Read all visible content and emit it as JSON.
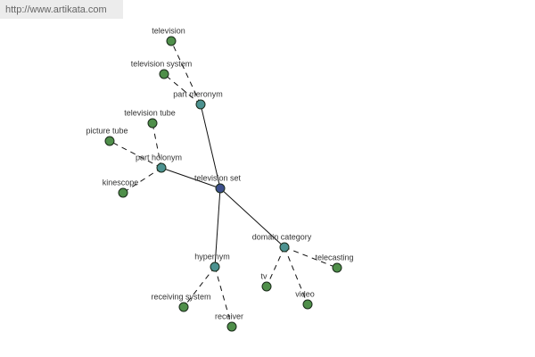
{
  "header": {
    "url": "http://www.artikata.com"
  },
  "nodes": [
    {
      "label": "television set"
    },
    {
      "label": "part meronym"
    },
    {
      "label": "television"
    },
    {
      "label": "television system"
    },
    {
      "label": "part holonym"
    },
    {
      "label": "television tube"
    },
    {
      "label": "picture tube"
    },
    {
      "label": "kinescope"
    },
    {
      "label": "domain category"
    },
    {
      "label": "telecasting"
    },
    {
      "label": "tv"
    },
    {
      "label": "video"
    },
    {
      "label": "hypernym"
    },
    {
      "label": "receiving system"
    },
    {
      "label": "receiver"
    }
  ]
}
